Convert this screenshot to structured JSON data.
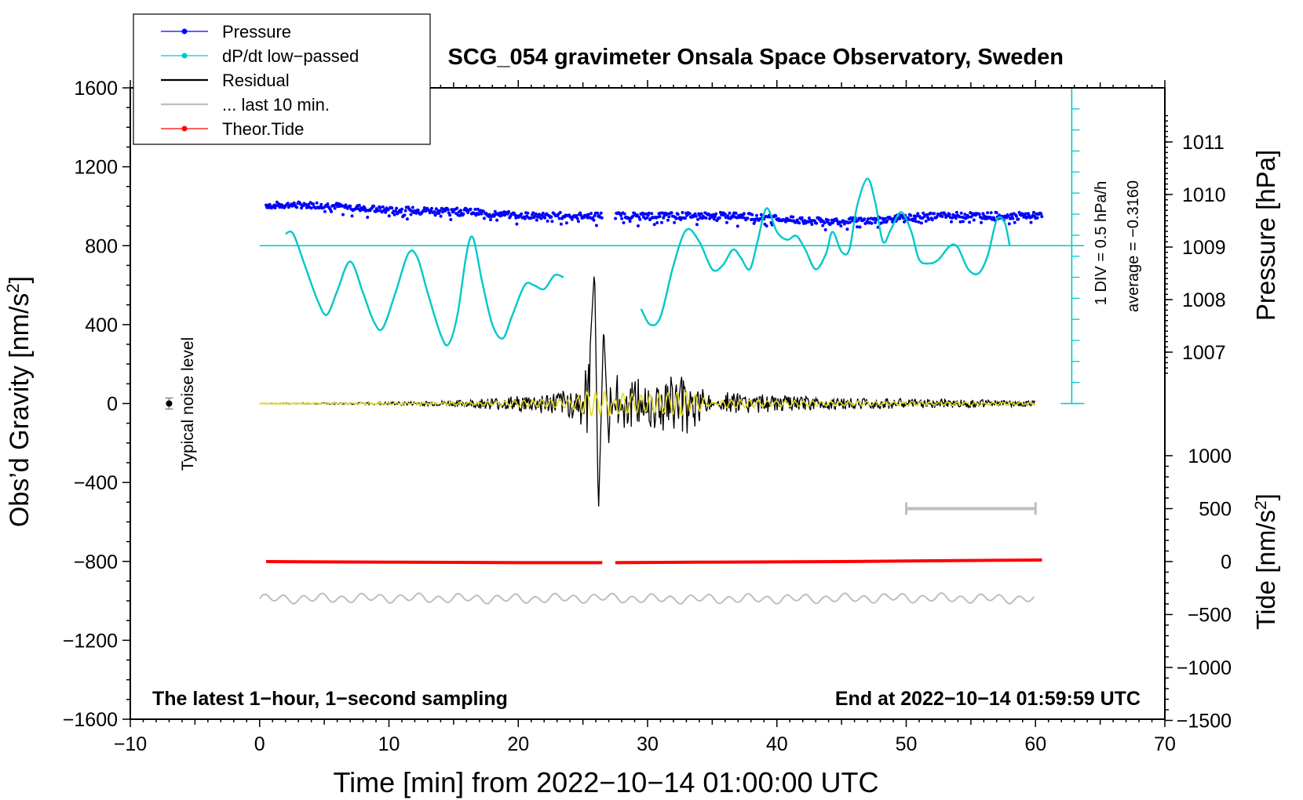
{
  "chart_data": {
    "type": "line",
    "title": "SCG_054 gravimeter Onsala Space Observatory, Sweden",
    "xlabel": "Time [min] from 2022−10−14 01:00:00 UTC",
    "ylabel": "Obs’d Gravity [nm/s²]",
    "xlim": [
      -10,
      70
    ],
    "ylim": [
      -1600,
      1600
    ],
    "x_ticks": [
      "−10",
      "0",
      "10",
      "20",
      "30",
      "40",
      "50",
      "60",
      "70"
    ],
    "y_ticks": [
      "1600",
      "1200",
      "800",
      "400",
      "0",
      "−400",
      "−800",
      "−1200",
      "−1600"
    ],
    "pressure_axis": {
      "label": "Pressure [hPa]",
      "ticks": [
        "1011",
        "1010",
        "1009",
        "1008",
        "1007"
      ],
      "values": [
        1011,
        1010,
        1009,
        1008,
        1007
      ]
    },
    "tide_axis": {
      "label": "Tide [nm/s²]",
      "ticks": [
        "1000",
        "500",
        "0",
        "−500",
        "−1000",
        "−1500"
      ],
      "values": [
        1000,
        500,
        0,
        -500,
        -1000,
        -1500
      ]
    },
    "dpdt_scale": {
      "div_label": "1 DIV = 0.5 hPa/h",
      "average_label": "average = −0.3160"
    },
    "noise_label": "Typical noise level",
    "footer_left": "The latest 1−hour, 1−second sampling",
    "footer_right": "End at 2022−10−14 01:59:59 UTC",
    "legend": [
      {
        "name": "Pressure",
        "color": "#0000ff",
        "marker": true
      },
      {
        "name": "dP/dt low−passed",
        "color": "#00c8c8",
        "marker": true
      },
      {
        "name": "Residual",
        "color": "#000000",
        "marker": false
      },
      {
        "name": "... last 10 min.",
        "color": "#bebebe",
        "marker": false
      },
      {
        "name": "Theor.Tide",
        "color": "#ff0000",
        "marker": true
      }
    ],
    "series": [
      {
        "name": "Pressure",
        "axis": "pressure_hPa",
        "x": [
          0.5,
          5,
          10,
          15,
          20,
          26.5,
          27.5,
          32,
          37,
          42,
          47,
          52,
          57,
          60.5
        ],
        "values": [
          1009.8,
          1009.8,
          1009.7,
          1009.7,
          1009.6,
          1009.6,
          1009.6,
          1009.6,
          1009.6,
          1009.5,
          1009.5,
          1009.6,
          1009.6,
          1009.6
        ]
      },
      {
        "name": "dP/dt low-passed",
        "axis": "gravity_units",
        "segments": [
          {
            "x": [
              2.0,
              2.6,
              3.5,
              4.5,
              5.2,
              6.0,
              7.0,
              8.0,
              8.8,
              9.5,
              10.5,
              11.5,
              12.2,
              13.0,
              14.0,
              14.6,
              15.3,
              16.0,
              16.5,
              17.2,
              18.0,
              18.8,
              19.5,
              20.5,
              21.2,
              22.0,
              22.8,
              23.5
            ],
            "values": [
              860,
              860,
              700,
              520,
              450,
              570,
              720,
              560,
              420,
              380,
              560,
              760,
              740,
              560,
              350,
              300,
              450,
              760,
              840,
              620,
              400,
              330,
              440,
              600,
              600,
              580,
              650,
              640
            ]
          },
          {
            "x": [
              29.5,
              30.2,
              31.0,
              32.0,
              33.0,
              34.0,
              35.0,
              35.8,
              36.6,
              37.2,
              37.9,
              38.5,
              39.2,
              40.0,
              40.8,
              41.5,
              42.2,
              43.0,
              43.8,
              44.3,
              45.0,
              45.6,
              46.2,
              47.0,
              47.6,
              48.2,
              48.8,
              49.6,
              50.4,
              51.0,
              51.8,
              52.5,
              53.4,
              54.0,
              54.8,
              55.6,
              56.3,
              57.0,
              57.6,
              58.0
            ],
            "values": [
              480,
              400,
              440,
              700,
              880,
              820,
              680,
              700,
              780,
              740,
              680,
              820,
              990,
              870,
              830,
              850,
              780,
              680,
              760,
              870,
              770,
              780,
              1000,
              1140,
              1020,
              820,
              880,
              970,
              870,
              730,
              710,
              730,
              800,
              790,
              680,
              660,
              750,
              930,
              920,
              800
            ]
          }
        ]
      },
      {
        "name": "Residual",
        "axis": "gravity_nm_s2",
        "x": [
          0,
          10,
          15,
          20,
          23,
          24.5,
          25.5,
          25.9,
          26.2,
          26.6,
          27.0,
          27.6,
          30,
          33.2,
          33.6,
          36,
          40,
          45,
          50,
          55,
          60
        ],
        "values": [
          0,
          8,
          15,
          40,
          60,
          80,
          220,
          690,
          -570,
          400,
          -200,
          150,
          120,
          180,
          -140,
          60,
          40,
          30,
          25,
          20,
          15
        ]
      },
      {
        "name": "... last 10 min.",
        "axis": "gravity_nm_s2",
        "x": [
          0,
          10,
          20,
          26.5,
          30,
          40,
          50,
          60
        ],
        "values": [
          -990,
          -985,
          -990,
          -985,
          -990,
          -990,
          -985,
          -990
        ]
      },
      {
        "name": "Theor.Tide",
        "axis": "tide_nm_s2",
        "x": [
          0.5,
          10,
          20,
          26.5,
          27.5,
          35,
          45,
          55,
          60.5
        ],
        "values": [
          0,
          -5,
          -10,
          -10,
          -10,
          -5,
          0,
          10,
          15
        ]
      }
    ],
    "last_10_min_bar": {
      "x": [
        50,
        60
      ],
      "tide_value": 500
    }
  }
}
